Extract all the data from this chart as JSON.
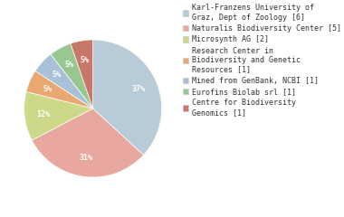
{
  "labels_legend": [
    "Karl-Franzens University of\nGraz, Dept of Zoology [6]",
    "Naturalis Biodiversity Center [5]",
    "Microsynth AG [2]",
    "Research Center in\nBiodiversity and Genetic\nResources [1]",
    "Mined from GenBank, NCBI [1]",
    "Eurofins Biolab srl [1]",
    "Centre for Biodiversity\nGenomics [1]"
  ],
  "values": [
    35,
    29,
    11,
    5,
    5,
    5,
    5
  ],
  "colors": [
    "#b8ccd8",
    "#e8a8a0",
    "#cdd888",
    "#e8a870",
    "#a8c0d8",
    "#98c890",
    "#c87868"
  ],
  "startangle": 90,
  "autopct_fontsize": 6,
  "legend_fontsize": 6,
  "background_color": "#ffffff"
}
